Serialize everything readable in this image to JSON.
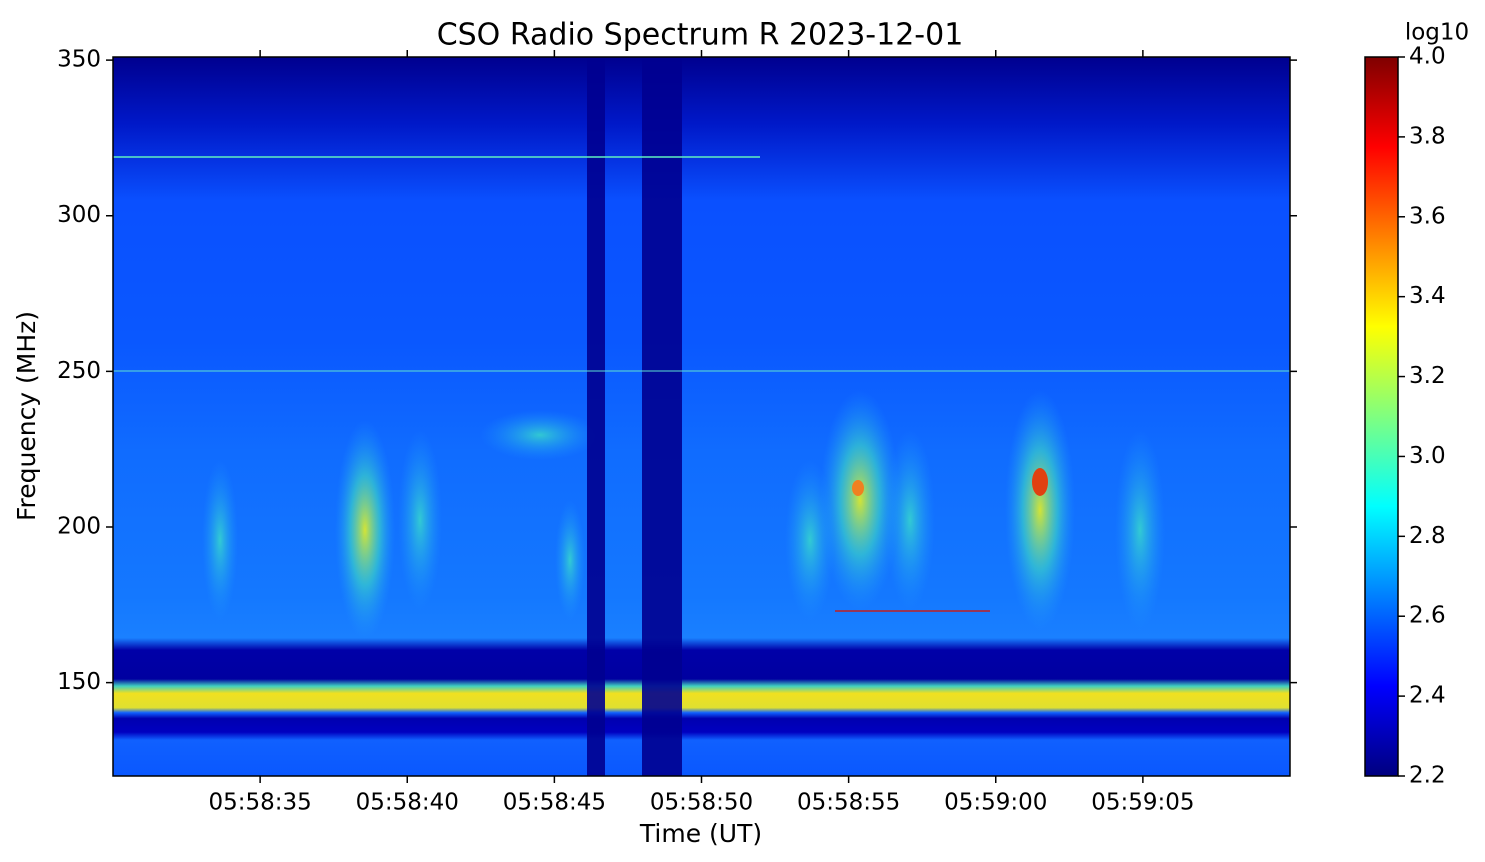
{
  "chart_data": {
    "type": "spectrogram",
    "title": "CSO Radio Spectrum R 2023-12-01",
    "x_label": "Time (UT)",
    "y_label": "Frequency (MHz)",
    "xlim": [
      21510,
      21550
    ],
    "xticks": [
      {
        "value": 21515,
        "label": "05:58:35"
      },
      {
        "value": 21520,
        "label": "05:58:40"
      },
      {
        "value": 21525,
        "label": "05:58:45"
      },
      {
        "value": 21530,
        "label": "05:58:50"
      },
      {
        "value": 21535,
        "label": "05:58:55"
      },
      {
        "value": 21540,
        "label": "05:59:00"
      },
      {
        "value": 21545,
        "label": "05:59:05"
      }
    ],
    "ylim": [
      120,
      351
    ],
    "yticks": [
      150,
      200,
      250,
      300,
      350
    ],
    "colorbar": {
      "label": "log10",
      "colormap": "jet",
      "lim": [
        2.2,
        4.0
      ],
      "ticks": [
        2.2,
        2.4,
        2.6,
        2.8,
        {
          "value": 3.0,
          "label": "3.0"
        },
        3.2,
        3.4,
        3.6,
        3.8,
        {
          "value": 4.0,
          "label": "4.0"
        }
      ]
    }
  }
}
